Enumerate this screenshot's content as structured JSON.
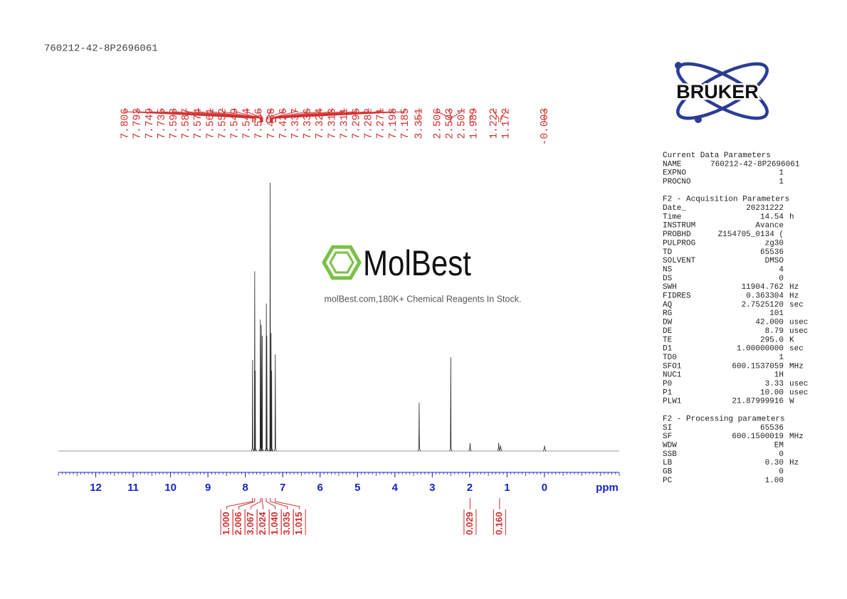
{
  "title": "760212-42-8P2696061",
  "chart_data": {
    "type": "nmr",
    "x_label": "ppm",
    "xlim": [
      13,
      -2
    ],
    "xticks": [
      12,
      11,
      10,
      9,
      8,
      7,
      6,
      5,
      4,
      3,
      2,
      1,
      0
    ],
    "ylim": [
      0,
      100
    ],
    "spectrum": {
      "x": [
        7.806,
        7.749,
        7.735,
        7.598,
        7.574,
        7.549,
        7.438,
        7.426,
        7.336,
        7.311,
        7.296,
        7.198,
        3.351,
        2.506,
        1.989,
        1.222,
        1.172,
        -0.003
      ],
      "values": [
        34,
        67,
        30,
        49,
        47,
        43,
        55,
        43,
        100,
        44,
        30,
        36,
        18,
        35,
        3,
        3,
        2,
        2
      ]
    },
    "peak_labels": [
      7.806,
      7.793,
      7.749,
      7.735,
      7.598,
      7.587,
      7.574,
      7.561,
      7.552,
      7.549,
      7.544,
      7.536,
      7.438,
      7.426,
      7.337,
      7.336,
      7.324,
      7.313,
      7.311,
      7.296,
      7.282,
      7.271,
      7.198,
      7.185,
      3.351,
      2.506,
      2.503,
      2.501,
      1.989,
      1.222,
      1.172,
      -0.003
    ],
    "integrals": {
      "x": [
        7.81,
        7.75,
        7.59,
        7.55,
        7.44,
        7.33,
        7.2,
        1.99,
        1.2
      ],
      "values": [
        {
          "value": 1,
          "label": "1.000"
        },
        2.006,
        3.067,
        2.024,
        {
          "value": 1.04,
          "label": "1.040"
        },
        3.035,
        1.015,
        0.029,
        {
          "value": 0.16,
          "label": "0.160"
        }
      ]
    }
  },
  "logo": {
    "brand": "BRUKER",
    "watermark": "MolBest",
    "watermark_caption": "molBest.com,180K+ Chemical Reagents In Stock."
  },
  "parameters": [
    {
      "title": "Current Data Parameters",
      "rows": [
        [
          "NAME",
          "760212-42-8P2696061"
        ],
        [
          "EXPNO",
          "1"
        ],
        [
          "PROCNO",
          "1"
        ]
      ]
    },
    {
      "title": "F2 - Acquisition Parameters",
      "rows": [
        [
          "Date_",
          "20231222"
        ],
        [
          "Time",
          "14.54",
          "h"
        ],
        [
          "INSTRUM",
          "Avance"
        ],
        [
          "PROBHD",
          "Z154705_0134 ("
        ],
        [
          "PULPROG",
          "zg30"
        ],
        [
          "TD",
          "65536"
        ],
        [
          "SOLVENT",
          "DMSO"
        ],
        [
          "NS",
          "4"
        ],
        [
          "DS",
          "0"
        ],
        [
          "SWH",
          "11904.762",
          "Hz"
        ],
        [
          "FIDRES",
          "0.363304",
          "Hz"
        ],
        [
          "AQ",
          "2.7525120",
          "sec"
        ],
        [
          "RG",
          "101"
        ],
        [
          "DW",
          "42.000",
          "usec"
        ],
        [
          "DE",
          "8.79",
          "usec"
        ],
        [
          "TE",
          "295.0",
          "K"
        ],
        [
          "D1",
          "1.00000000",
          "sec"
        ],
        [
          "TD0",
          "1"
        ],
        [
          "SFO1",
          "600.1537059",
          "MHz"
        ],
        [
          "NUC1",
          "1H"
        ],
        [
          "P0",
          "3.33",
          "usec"
        ],
        [
          "P1",
          "10.00",
          "usec"
        ],
        [
          "PLW1",
          "21.87999916",
          "W"
        ]
      ]
    },
    {
      "title": "F2 - Processing parameters",
      "rows": [
        [
          "SI",
          "65536"
        ],
        [
          "SF",
          "600.1500019",
          "MHz"
        ],
        [
          "WDW",
          "EM"
        ],
        [
          "SSB",
          "0"
        ],
        [
          "LB",
          "0.30",
          "Hz"
        ],
        [
          "GB",
          "0"
        ],
        [
          "PC",
          "1.00"
        ]
      ]
    }
  ]
}
